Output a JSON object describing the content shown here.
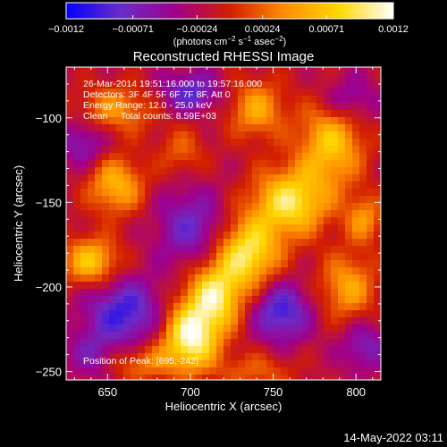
{
  "chart_data": {
    "type": "heatmap",
    "title": "Reconstructed RHESSI Image",
    "xlabel": "Heliocentric X (arcsec)",
    "ylabel": "Heliocentric Y (arcsec)",
    "xlim": [
      625,
      815
    ],
    "ylim": [
      -255,
      -70
    ],
    "x_ticks": [
      650,
      700,
      750,
      800
    ],
    "y_ticks": [
      -100,
      -150,
      -200,
      -250
    ],
    "x_tick_labels": [
      "650",
      "700",
      "750",
      "800"
    ],
    "y_tick_labels": [
      "−100",
      "−150",
      "−200",
      "−250"
    ],
    "colorbar": {
      "min": -0.0012,
      "max": 0.0012,
      "ticks": [
        -0.0012,
        -0.00071,
        -0.00024,
        0.00024,
        0.00071,
        0.0012
      ],
      "tick_labels": [
        "−0.0012",
        "−0.00071",
        "−0.00024",
        "0.00024",
        "0.00071",
        "0.0012"
      ],
      "unit_main": "(photons cm",
      "unit_exp1": "−2",
      "unit_mid1": " s",
      "unit_exp2": "−1",
      "unit_mid2": " asec",
      "unit_exp3": "−2",
      "unit_end": ")",
      "colors": [
        "#0000ff",
        "#6a2cc8",
        "#a0008c",
        "#d21e00",
        "#ff8c00",
        "#ffd700",
        "#ffffff"
      ]
    },
    "annotations": [
      "26-Mar-2014 19:51:16.000 to 19:57:16.000",
      "Detectors: 3F 4F 5F 6F 7F 8F, Att 0",
      "Energy Range: 12.0 - 25.0 keV",
      "Clean     Total counts: 8.59E+03"
    ],
    "peak_label": "Position of Peak: [695,-242]",
    "peak": [
      695,
      -242
    ],
    "sources": [
      {
        "x": 700,
        "y": -230,
        "sx": 12,
        "sy": 14,
        "a": 0.0013
      },
      {
        "x": 715,
        "y": -205,
        "sx": 12,
        "sy": 14,
        "a": 0.0011
      },
      {
        "x": 735,
        "y": -180,
        "sx": 13,
        "sy": 14,
        "a": 0.0011
      },
      {
        "x": 760,
        "y": -150,
        "sx": 16,
        "sy": 14,
        "a": 0.0011
      },
      {
        "x": 785,
        "y": -115,
        "sx": 14,
        "sy": 18,
        "a": 0.0009
      },
      {
        "x": 740,
        "y": -95,
        "sx": 12,
        "sy": 12,
        "a": 0.0007
      },
      {
        "x": 655,
        "y": -140,
        "sx": 12,
        "sy": 12,
        "a": 0.0008
      },
      {
        "x": 640,
        "y": -185,
        "sx": 12,
        "sy": 10,
        "a": 0.0009
      },
      {
        "x": 655,
        "y": -95,
        "sx": 16,
        "sy": 10,
        "a": 0.0006
      },
      {
        "x": 795,
        "y": -200,
        "sx": 12,
        "sy": 14,
        "a": 0.0007
      },
      {
        "x": 805,
        "y": -160,
        "sx": 8,
        "sy": 10,
        "a": 0.0006
      },
      {
        "x": 670,
        "y": -245,
        "sx": 14,
        "sy": 8,
        "a": 0.0005
      },
      {
        "x": 695,
        "y": -120,
        "sx": 10,
        "sy": 10,
        "a": 0.0004
      },
      {
        "x": 740,
        "y": -250,
        "sx": 16,
        "sy": 8,
        "a": 0.0004
      },
      {
        "x": 700,
        "y": -85,
        "sx": 12,
        "sy": 8,
        "a": -0.0007
      },
      {
        "x": 660,
        "y": -215,
        "sx": 16,
        "sy": 14,
        "a": -0.0008
      },
      {
        "x": 700,
        "y": -165,
        "sx": 14,
        "sy": 16,
        "a": -0.0006
      },
      {
        "x": 755,
        "y": -215,
        "sx": 12,
        "sy": 12,
        "a": -0.0008
      },
      {
        "x": 805,
        "y": -235,
        "sx": 10,
        "sy": 10,
        "a": -0.0005
      },
      {
        "x": 795,
        "y": -90,
        "sx": 12,
        "sy": 10,
        "a": -0.0005
      },
      {
        "x": 635,
        "y": -115,
        "sx": 10,
        "sy": 10,
        "a": -0.0005
      },
      {
        "x": 640,
        "y": -240,
        "sx": 10,
        "sy": 10,
        "a": -0.0004
      }
    ]
  },
  "footer": {
    "timestamp": "14-May-2022 03:11"
  }
}
